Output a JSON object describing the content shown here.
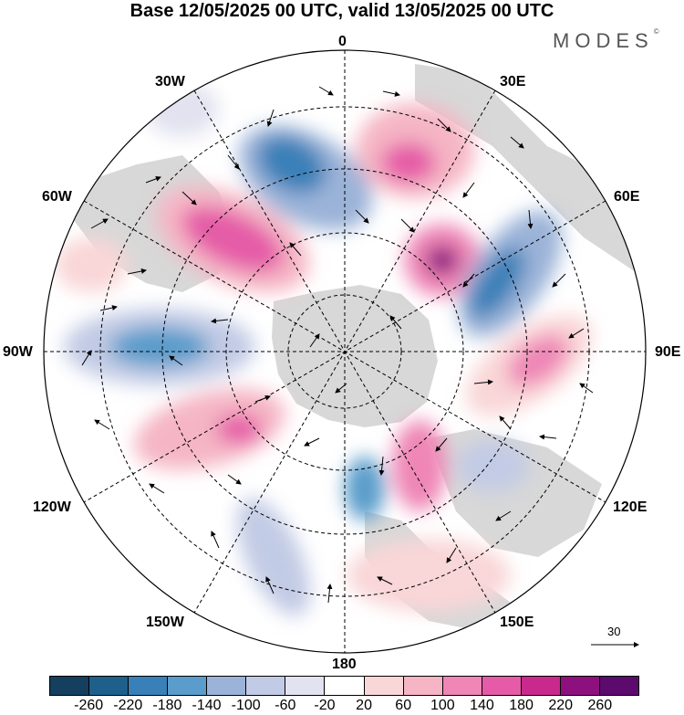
{
  "title": "Base 12/05/2025 00 UTC, valid 13/05/2025 00 UTC",
  "brand": "MODES",
  "brand_mark": "©",
  "longitude_labels": {
    "lon_0": "0",
    "lon_30e": "30E",
    "lon_60e": "60E",
    "lon_90e": "90E",
    "lon_120e": "120E",
    "lon_150e": "150E",
    "lon_180": "180",
    "lon_150w": "150W",
    "lon_120w": "120W",
    "lon_90w": "90W",
    "lon_60w": "60W",
    "lon_30w": "30W"
  },
  "reference_vector": "30",
  "colorbar": {
    "labels": [
      "-260",
      "-220",
      "-180",
      "-140",
      "-100",
      "-60",
      "-20",
      "20",
      "60",
      "100",
      "140",
      "180",
      "220",
      "260"
    ],
    "colors": [
      "#143f5e",
      "#1f5f8b",
      "#3a80b8",
      "#5a9ccb",
      "#9bb3d8",
      "#c2cbe5",
      "#e2e2f0",
      "#ffffff",
      "#f9d6d7",
      "#f5b5c4",
      "#ef86b6",
      "#e55ba7",
      "#c9288c",
      "#8e0f7e",
      "#5c0a6e"
    ]
  }
}
